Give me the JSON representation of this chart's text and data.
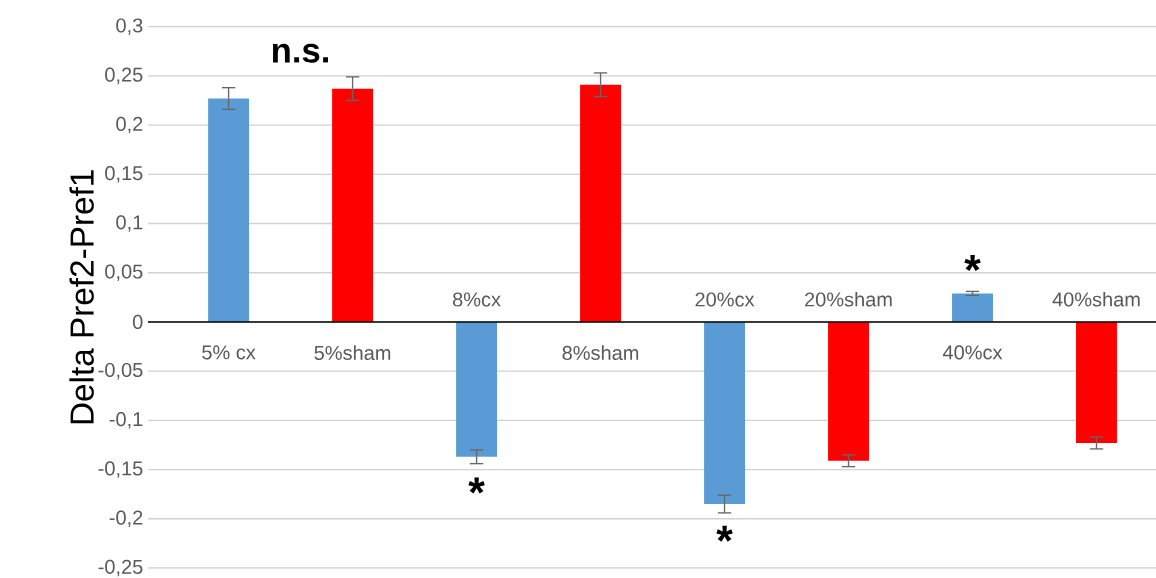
{
  "chart_data": {
    "type": "bar",
    "ylabel": "Delta Pref2-Pref1",
    "categories": [
      "5% cx",
      "5%sham",
      "8%cx",
      "8%sham",
      "20%cx",
      "20%sham",
      "40%cx",
      "40%sham"
    ],
    "values": [
      0.227,
      0.237,
      -0.137,
      0.241,
      -0.185,
      -0.141,
      0.029,
      -0.123
    ],
    "errors": [
      0.011,
      0.012,
      0.007,
      0.012,
      0.009,
      0.006,
      0.002,
      0.006
    ],
    "colors": [
      "#5b9bd5",
      "#ff0000",
      "#5b9bd5",
      "#ff0000",
      "#5b9bd5",
      "#ff0000",
      "#5b9bd5",
      "#ff0000"
    ],
    "ylim": [
      -0.25,
      0.3
    ],
    "yticks": [
      {
        "value": -0.25,
        "label": "-0,25"
      },
      {
        "value": -0.2,
        "label": "-0,2"
      },
      {
        "value": -0.15,
        "label": "-0,15"
      },
      {
        "value": -0.1,
        "label": "-0,1"
      },
      {
        "value": -0.05,
        "label": "-0,05"
      },
      {
        "value": 0,
        "label": "0"
      },
      {
        "value": 0.05,
        "label": "0,05"
      },
      {
        "value": 0.1,
        "label": "0,1"
      },
      {
        "value": 0.15,
        "label": "0,15"
      },
      {
        "value": 0.2,
        "label": "0,2"
      },
      {
        "value": 0.25,
        "label": "0,25"
      },
      {
        "value": 0.3,
        "label": "0,3"
      }
    ],
    "grid": "y",
    "annotations": [
      "n.s.",
      "*",
      "*",
      "*"
    ]
  }
}
